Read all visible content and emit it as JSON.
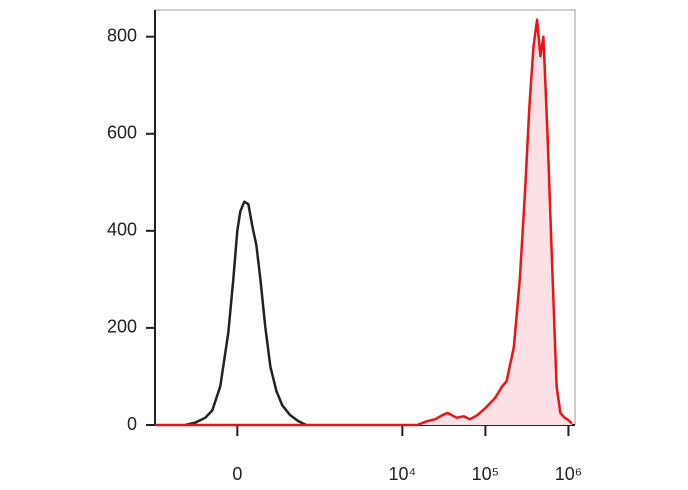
{
  "chart_data": {
    "type": "line",
    "x_scale": "asinh",
    "x_scale_cofactor": 206,
    "xlim": [
      -1000,
      1200000
    ],
    "ylim": [
      0,
      855
    ],
    "xticks": [
      {
        "value": 0,
        "label": "0"
      },
      {
        "value": 10000,
        "label": "10⁴"
      },
      {
        "value": 100000,
        "label": "10⁵"
      },
      {
        "value": 1000000,
        "label": "10⁶"
      }
    ],
    "yticks": [
      0,
      200,
      400,
      600,
      800
    ],
    "series": [
      {
        "color": "#222222",
        "x": [
          -410,
          -298,
          -208,
          -155,
          -101,
          -52,
          -23,
          0,
          17,
          40,
          64,
          88,
          114,
          141,
          177,
          216,
          269,
          330,
          424,
          540,
          682
        ],
        "values": [
          0,
          5,
          15,
          30,
          80,
          190,
          300,
          400,
          440,
          460,
          455,
          410,
          370,
          300,
          200,
          120,
          70,
          40,
          20,
          8,
          0
        ]
      },
      {
        "color": "#e8141a",
        "fill": "#fbe1e5",
        "x": [
          -1000,
          0,
          5000,
          15000,
          20000,
          25000,
          30000,
          35000,
          45000,
          55000,
          65000,
          80000,
          100000,
          130000,
          160000,
          180000,
          220000,
          260000,
          300000,
          340000,
          380000,
          420000,
          460000,
          500000,
          560000,
          640000,
          720000,
          800000,
          900000,
          1000000,
          1100000
        ],
        "values": [
          0,
          0,
          0,
          0,
          8,
          12,
          20,
          25,
          15,
          18,
          12,
          20,
          35,
          55,
          80,
          90,
          160,
          300,
          480,
          660,
          780,
          835,
          760,
          800,
          600,
          320,
          80,
          25,
          15,
          10,
          3
        ]
      }
    ]
  }
}
